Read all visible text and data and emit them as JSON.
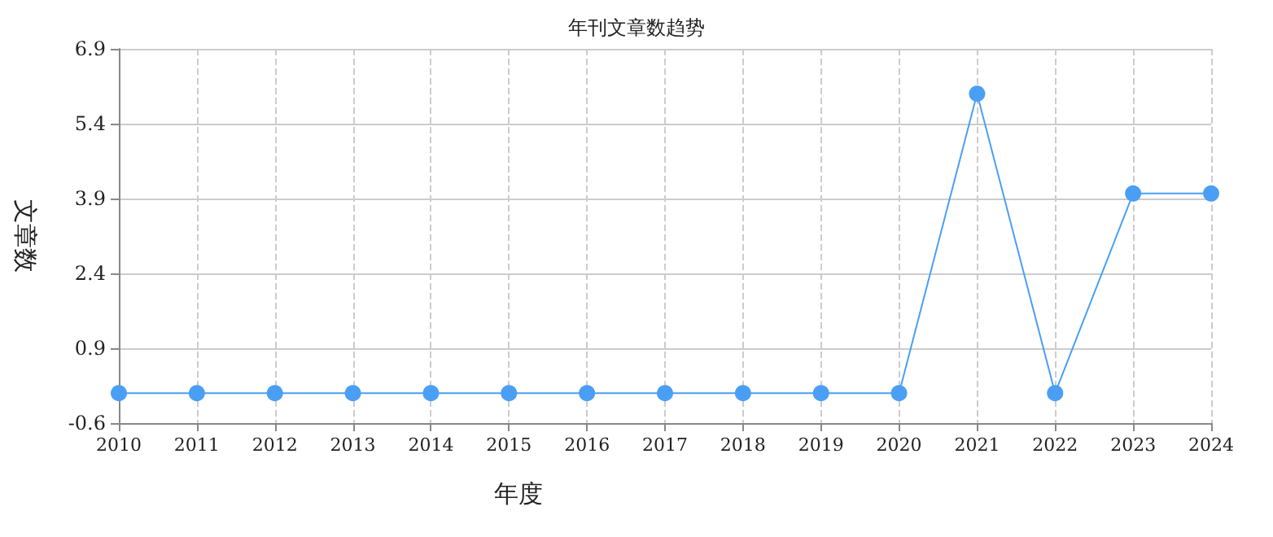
{
  "chart_data": {
    "type": "line",
    "title": "年刊文章数趋势",
    "xlabel": "年度",
    "ylabel": "文章数",
    "categories": [
      "2010",
      "2011",
      "2012",
      "2013",
      "2014",
      "2015",
      "2016",
      "2017",
      "2018",
      "2019",
      "2020",
      "2021",
      "2022",
      "2023",
      "2024"
    ],
    "series": [
      {
        "color": "#4a9ff5",
        "values": [
          0,
          0,
          0,
          0,
          0,
          0,
          0,
          0,
          0,
          0,
          0,
          6,
          0,
          4,
          4
        ]
      }
    ],
    "ylim": [
      -0.6,
      6.9
    ],
    "yticks": [
      -0.6,
      0.9,
      2.4,
      3.9,
      5.4,
      6.9
    ],
    "grid": true,
    "marker": "circle",
    "line_style": "solid"
  }
}
